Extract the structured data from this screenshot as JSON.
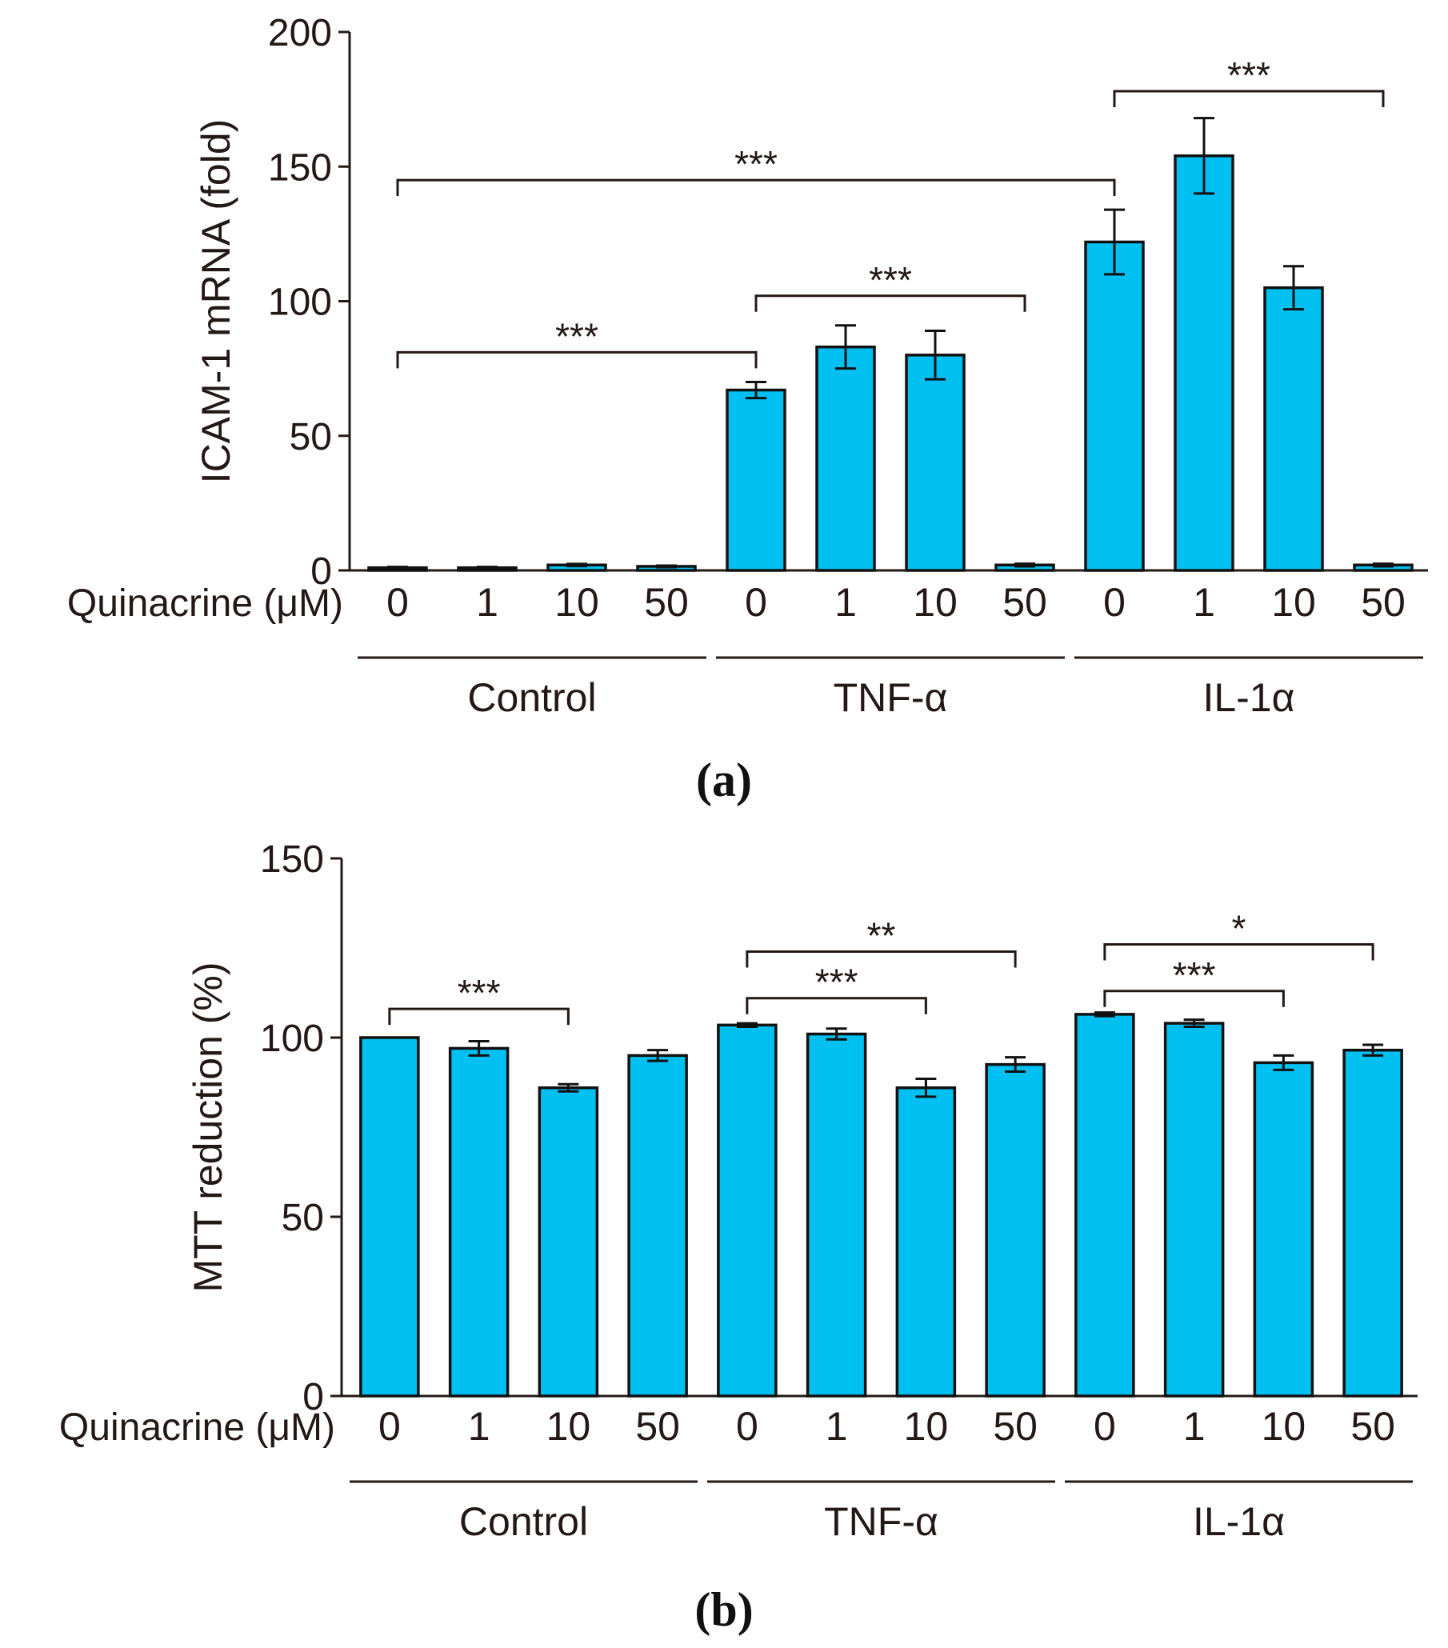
{
  "quinacrine_label": "Quinacrine (μM)",
  "chart_data": [
    {
      "type": "bar",
      "panel_label": "a",
      "panel_prefix": "(",
      "panel_suffix": ")",
      "ylabel": "ICAM-1 mRNA (fold)",
      "ylim": [
        0,
        200
      ],
      "yticks": [
        "0",
        "50",
        "100",
        "150",
        "200"
      ],
      "concentrations": [
        "0",
        "1",
        "10",
        "50"
      ],
      "groups": [
        "Control",
        "TNF-α",
        "IL-1α"
      ],
      "values": [
        1,
        1,
        2,
        1.5,
        67,
        83,
        80,
        2,
        122,
        154,
        105,
        2
      ],
      "errors": [
        0.3,
        0.3,
        0.4,
        0.3,
        3,
        8,
        9,
        0.5,
        12,
        14,
        8,
        0.5
      ],
      "significance": [
        {
          "from": 0,
          "to": 4,
          "level": 81,
          "label": "***"
        },
        {
          "from": 4,
          "to": 7,
          "level": 102,
          "label": "***"
        },
        {
          "from": 0,
          "to": 8,
          "level": 145,
          "label": "***"
        },
        {
          "from": 8,
          "to": 11,
          "level": 178,
          "label": "***"
        }
      ]
    },
    {
      "type": "bar",
      "panel_label": "b",
      "panel_prefix": "(",
      "panel_suffix": ")",
      "ylabel": "MTT reduction (%)",
      "ylim": [
        0,
        150
      ],
      "yticks": [
        "0",
        "50",
        "100",
        "150"
      ],
      "concentrations": [
        "0",
        "1",
        "10",
        "50"
      ],
      "groups": [
        "Control",
        "TNF-α",
        "IL-1α"
      ],
      "values": [
        100,
        97,
        86,
        95,
        103.5,
        101,
        86,
        92.5,
        106.5,
        104,
        93,
        96.5
      ],
      "errors": [
        0,
        2,
        1,
        1.5,
        0.5,
        1.5,
        2.5,
        2,
        0.5,
        1,
        2,
        1.5
      ],
      "significance": [
        {
          "from": 0,
          "to": 2,
          "level": 108,
          "label": "***"
        },
        {
          "from": 4,
          "to": 6,
          "level": 111,
          "label": "***"
        },
        {
          "from": 4,
          "to": 7,
          "level": 124,
          "label": "**"
        },
        {
          "from": 8,
          "to": 10,
          "level": 113,
          "label": "***"
        },
        {
          "from": 8,
          "to": 11,
          "level": 126,
          "label": "*"
        }
      ]
    }
  ]
}
